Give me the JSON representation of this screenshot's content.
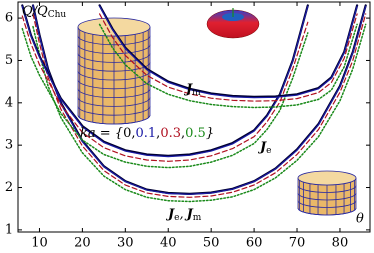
{
  "chart_data": {
    "type": "line",
    "y_label": {
      "main": "Q/Q",
      "sub": "Chu"
    },
    "x_label": "θ",
    "xlim": [
      5,
      87
    ],
    "ylim": [
      0.95,
      6.38
    ],
    "xticks": [
      10,
      20,
      30,
      40,
      50,
      60,
      70,
      80
    ],
    "yticks": [
      1,
      2,
      3,
      4,
      5,
      6
    ],
    "ka_annotation": {
      "prefix": "ka = {",
      "values": [
        "0",
        "0.1",
        "0.3",
        "0.5"
      ],
      "colors": [
        "#000000",
        "#1a1aa6",
        "#b01020",
        "#1a8a1a"
      ],
      "separator": ",",
      "suffix": "}"
    },
    "curve_labels": [
      {
        "items": [
          {
            "main": "J",
            "sub": "m"
          }
        ]
      },
      {
        "items": [
          {
            "main": "J",
            "sub": "e"
          }
        ]
      },
      {
        "items": [
          {
            "main": "J",
            "sub": "e"
          },
          {
            "main": "J",
            "sub": "m"
          }
        ],
        "separator": ","
      }
    ],
    "series": [
      {
        "color": "#000033",
        "style": "solid",
        "x": [
          8.5,
          10,
          12,
          15,
          20,
          25,
          30,
          35,
          40,
          45,
          50,
          55,
          60,
          65,
          70,
          75,
          80,
          83,
          86
        ],
        "values": [
          6.3,
          5.6,
          4.8,
          4.0,
          3.1,
          2.5,
          2.15,
          1.95,
          1.87,
          1.85,
          1.88,
          1.97,
          2.15,
          2.45,
          2.9,
          3.5,
          4.4,
          5.2,
          6.3
        ]
      },
      {
        "color": "#1a1aa6",
        "style": "solid",
        "x": [
          8.5,
          10,
          12,
          15,
          20,
          25,
          30,
          35,
          40,
          45,
          50,
          55,
          60,
          65,
          70,
          75,
          80,
          83,
          86
        ],
        "values": [
          6.3,
          5.58,
          4.78,
          3.98,
          3.08,
          2.49,
          2.14,
          1.94,
          1.86,
          1.84,
          1.87,
          1.96,
          2.14,
          2.44,
          2.88,
          3.48,
          4.38,
          5.18,
          6.28
        ]
      },
      {
        "color": "#b01020",
        "style": "dashed",
        "x": [
          8.5,
          10,
          12,
          15,
          20,
          25,
          30,
          35,
          40,
          45,
          50,
          55,
          60,
          65,
          70,
          75,
          80,
          83,
          86
        ],
        "values": [
          6.1,
          5.4,
          4.6,
          3.85,
          2.98,
          2.4,
          2.06,
          1.87,
          1.79,
          1.77,
          1.8,
          1.89,
          2.06,
          2.35,
          2.78,
          3.37,
          4.25,
          5.0,
          6.1
        ]
      },
      {
        "color": "#1a8a1a",
        "style": "dotted",
        "x": [
          8.5,
          10,
          12,
          15,
          20,
          25,
          30,
          35,
          40,
          45,
          50,
          55,
          60,
          65,
          70,
          75,
          80,
          83,
          86
        ],
        "values": [
          5.8,
          5.15,
          4.4,
          3.65,
          2.82,
          2.27,
          1.95,
          1.77,
          1.69,
          1.67,
          1.7,
          1.78,
          1.95,
          2.23,
          2.64,
          3.2,
          4.05,
          4.8,
          5.85
        ]
      },
      {
        "color": "#000033",
        "style": "solid",
        "x": [
          6,
          8,
          10,
          15,
          20,
          25,
          30,
          35,
          40,
          45,
          50,
          55,
          60,
          63,
          66,
          69,
          72.5
        ],
        "values": [
          6.3,
          5.6,
          5.1,
          4.1,
          3.45,
          3.08,
          2.88,
          2.78,
          2.75,
          2.78,
          2.88,
          3.05,
          3.35,
          3.7,
          4.2,
          5.0,
          6.3
        ]
      },
      {
        "color": "#1a1aa6",
        "style": "solid",
        "x": [
          6,
          8,
          10,
          15,
          20,
          25,
          30,
          35,
          40,
          45,
          50,
          55,
          60,
          63,
          66,
          69,
          72.5
        ],
        "values": [
          6.28,
          5.58,
          5.08,
          4.08,
          3.43,
          3.06,
          2.86,
          2.76,
          2.73,
          2.76,
          2.86,
          3.03,
          3.33,
          3.68,
          4.18,
          4.98,
          6.28
        ]
      },
      {
        "color": "#b01020",
        "style": "dashed",
        "x": [
          6,
          8,
          10,
          15,
          20,
          25,
          30,
          35,
          40,
          45,
          50,
          55,
          60,
          63,
          66,
          69,
          72.5
        ],
        "values": [
          6.05,
          5.4,
          4.9,
          3.95,
          3.3,
          2.94,
          2.75,
          2.65,
          2.62,
          2.65,
          2.75,
          2.92,
          3.2,
          3.55,
          4.02,
          4.8,
          5.9
        ]
      },
      {
        "color": "#1a8a1a",
        "style": "dotted",
        "x": [
          6,
          8,
          10,
          15,
          20,
          25,
          30,
          35,
          40,
          45,
          50,
          55,
          60,
          63,
          66,
          69,
          72.5
        ],
        "values": [
          5.75,
          5.1,
          4.65,
          3.75,
          3.12,
          2.78,
          2.6,
          2.5,
          2.47,
          2.5,
          2.6,
          2.76,
          3.04,
          3.37,
          3.82,
          4.58,
          5.65
        ]
      },
      {
        "color": "#000033",
        "style": "solid",
        "x": [
          24,
          27,
          30,
          35,
          40,
          45,
          50,
          55,
          60,
          65,
          70,
          75,
          78,
          81,
          84
        ],
        "values": [
          6.3,
          5.75,
          5.3,
          4.8,
          4.5,
          4.33,
          4.22,
          4.16,
          4.14,
          4.15,
          4.2,
          4.35,
          4.6,
          5.2,
          6.3
        ]
      },
      {
        "color": "#1a1aa6",
        "style": "solid",
        "x": [
          24,
          27,
          30,
          35,
          40,
          45,
          50,
          55,
          60,
          65,
          70,
          75,
          78,
          81,
          84
        ],
        "values": [
          6.28,
          5.73,
          5.28,
          4.78,
          4.48,
          4.31,
          4.2,
          4.14,
          4.12,
          4.13,
          4.18,
          4.33,
          4.58,
          5.18,
          6.28
        ]
      },
      {
        "color": "#b01020",
        "style": "dashed",
        "x": [
          24,
          27,
          30,
          35,
          40,
          45,
          50,
          55,
          60,
          65,
          70,
          75,
          78,
          81,
          84
        ],
        "values": [
          6.1,
          5.55,
          5.12,
          4.65,
          4.37,
          4.21,
          4.11,
          4.06,
          4.04,
          4.05,
          4.1,
          4.24,
          4.48,
          5.05,
          6.1
        ]
      },
      {
        "color": "#1a8a1a",
        "style": "dotted",
        "x": [
          24,
          27,
          30,
          35,
          40,
          45,
          50,
          55,
          60,
          65,
          70,
          75,
          78,
          81,
          84
        ],
        "values": [
          5.85,
          5.3,
          4.9,
          4.45,
          4.2,
          4.05,
          3.96,
          3.91,
          3.89,
          3.9,
          3.95,
          4.08,
          4.3,
          4.85,
          5.85
        ]
      }
    ]
  }
}
